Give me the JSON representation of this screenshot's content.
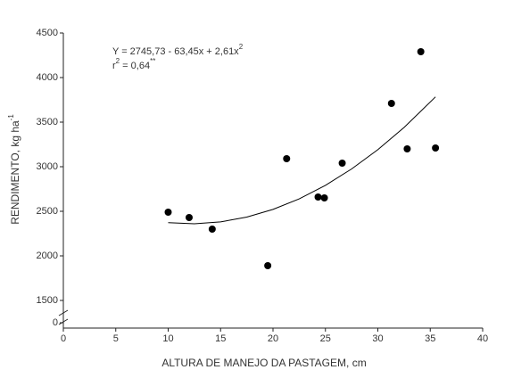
{
  "chart_data": {
    "type": "scatter",
    "x_label": "ALTURA DE MANEJO DA PASTAGEM, cm",
    "y_label": {
      "text": "RENDIMENTO, kg ha",
      "sup": "-1"
    },
    "annotations": [
      [
        {
          "text": "Y = 2745,73 - 63,45x + 2,61x"
        },
        {
          "text": "2",
          "sup": true
        }
      ],
      [
        {
          "text": "r"
        },
        {
          "text": "2",
          "sup": true
        },
        {
          "text": " = 0,64"
        },
        {
          "text": "**",
          "sup": true
        }
      ]
    ],
    "xlim": [
      0,
      40
    ],
    "xticks": [
      0,
      5,
      10,
      15,
      20,
      25,
      30,
      35,
      40
    ],
    "ylim": [
      0,
      4500
    ],
    "y_break": [
      50,
      1300
    ],
    "yticks": [
      0,
      1500,
      2000,
      2500,
      3000,
      3500,
      4000,
      4500
    ],
    "series": [
      {
        "type": "scatter",
        "color": "#000000",
        "x": [
          10,
          12,
          14.2,
          19.5,
          21.3,
          24.3,
          24.9,
          26.6,
          31.3,
          32.8,
          34.1,
          35.5
        ],
        "values": [
          2490,
          2430,
          2300,
          1890,
          3090,
          2660,
          2650,
          3040,
          3710,
          3200,
          4290,
          3210
        ]
      },
      {
        "type": "line",
        "color": "#000000",
        "x": [
          10,
          12.5,
          15,
          17.5,
          20,
          22.5,
          25,
          27.5,
          30,
          32.5,
          35.5
        ],
        "values": [
          2372,
          2360,
          2381,
          2435,
          2521,
          2639,
          2791,
          2975,
          3191,
          3440,
          3783
        ]
      }
    ]
  }
}
